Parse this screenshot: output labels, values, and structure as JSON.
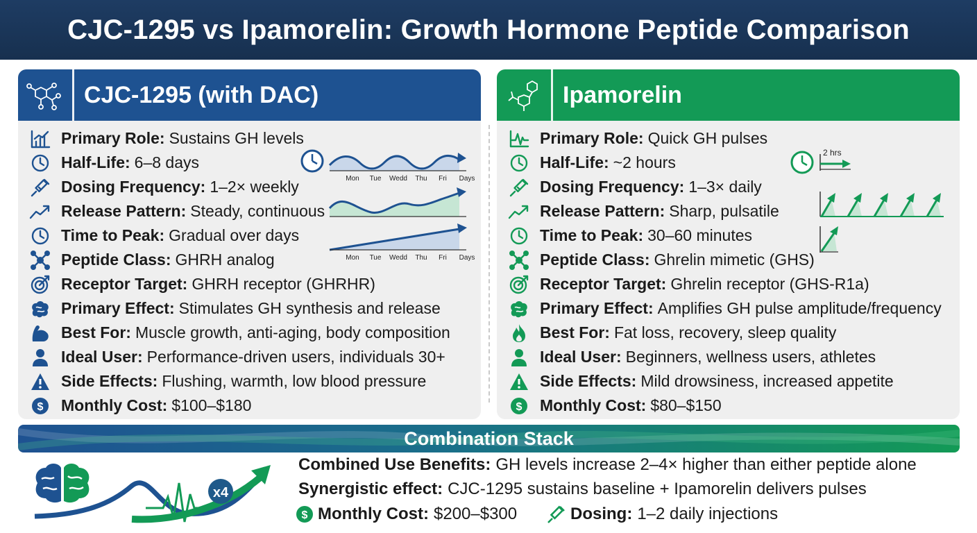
{
  "title": "CJC-1295 vs Ipamorelin: Growth Hormone Peptide Comparison",
  "colors": {
    "navy": "#1e3c63",
    "blue": "#1e5291",
    "green": "#139a56",
    "panel": "#efefef"
  },
  "left_panel": {
    "name": "CJC-1295 (with DAC)",
    "rows": [
      {
        "icon": "bar-chart-icon",
        "label": "Primary Role:",
        "value": "Sustains GH levels"
      },
      {
        "icon": "clock-icon",
        "label": "Half-Life:",
        "value": "6–8 days"
      },
      {
        "icon": "syringe-icon",
        "label": "Dosing Frequency:",
        "value": "1–2× weekly"
      },
      {
        "icon": "trend-up-icon",
        "label": "Release Pattern:",
        "value": "Steady, continuous"
      },
      {
        "icon": "clock-icon",
        "label": "Time to Peak:",
        "value": "Gradual over days"
      },
      {
        "icon": "molecule-icon",
        "label": "Peptide Class:",
        "value": "GHRH analog"
      },
      {
        "icon": "target-icon",
        "label": "Receptor Target:",
        "value": "GHRH receptor (GHRHR)"
      },
      {
        "icon": "brain-icon",
        "label": "Primary Effect:",
        "value": "Stimulates GH synthesis and release"
      },
      {
        "icon": "muscle-icon",
        "label": "Best For:",
        "value": "Muscle growth, anti-aging, body composition"
      },
      {
        "icon": "user-icon",
        "label": "Ideal User:",
        "value": "Performance-driven users, individuals 30+"
      },
      {
        "icon": "warning-icon",
        "label": "Side Effects:",
        "value": "Flushing, warmth, low blood pressure"
      },
      {
        "icon": "dollar-icon",
        "label": "Monthly Cost:",
        "value": "$100–$180"
      }
    ],
    "charts": {
      "days": [
        "Mon",
        "Tue",
        "Wedd",
        "Thu",
        "Fri"
      ],
      "axis_end": "Days"
    }
  },
  "right_panel": {
    "name": "Ipamorelin",
    "rows": [
      {
        "icon": "pulse-icon",
        "label": "Primary Role:",
        "value": "Quick GH pulses"
      },
      {
        "icon": "clock-icon",
        "label": "Half-Life:",
        "value": "~2 hours"
      },
      {
        "icon": "syringe-icon",
        "label": "Dosing Frequency:",
        "value": "1–3× daily"
      },
      {
        "icon": "trend-up-icon",
        "label": "Release Pattern:",
        "value": "Sharp, pulsatile"
      },
      {
        "icon": "clock-icon",
        "label": "Time to Peak:",
        "value": "30–60 minutes"
      },
      {
        "icon": "molecule-icon",
        "label": "Peptide Class:",
        "value": "Ghrelin mimetic (GHS)"
      },
      {
        "icon": "target-icon",
        "label": "Receptor Target:",
        "value": "Ghrelin receptor (GHS-R1a)"
      },
      {
        "icon": "brain-icon",
        "label": "Primary Effect:",
        "value": "Amplifies GH pulse amplitude/frequency"
      },
      {
        "icon": "flame-icon",
        "label": "Best For:",
        "value": "Fat loss, recovery, sleep quality"
      },
      {
        "icon": "user-icon",
        "label": "Ideal User:",
        "value": "Beginners, wellness users, athletes"
      },
      {
        "icon": "warning-icon",
        "label": "Side Effects:",
        "value": "Mild drowsiness, increased appetite"
      },
      {
        "icon": "dollar-icon",
        "label": "Monthly Cost:",
        "value": "$80–$150"
      }
    ],
    "charts": {
      "half_life_label": "2 hrs"
    }
  },
  "combination": {
    "title": "Combination Stack",
    "multiplier": "x4",
    "benefits_label": "Combined Use Benefits:",
    "benefits_value": "GH levels increase 2–4× higher than either peptide alone",
    "synergy_label": "Synergistic effect:",
    "synergy_value": "CJC-1295 sustains baseline + Ipamorelin delivers pulses",
    "cost_label": "Monthly Cost:",
    "cost_value": "$200–$300",
    "dosing_label": "Dosing:",
    "dosing_value": "1–2 daily injections"
  }
}
